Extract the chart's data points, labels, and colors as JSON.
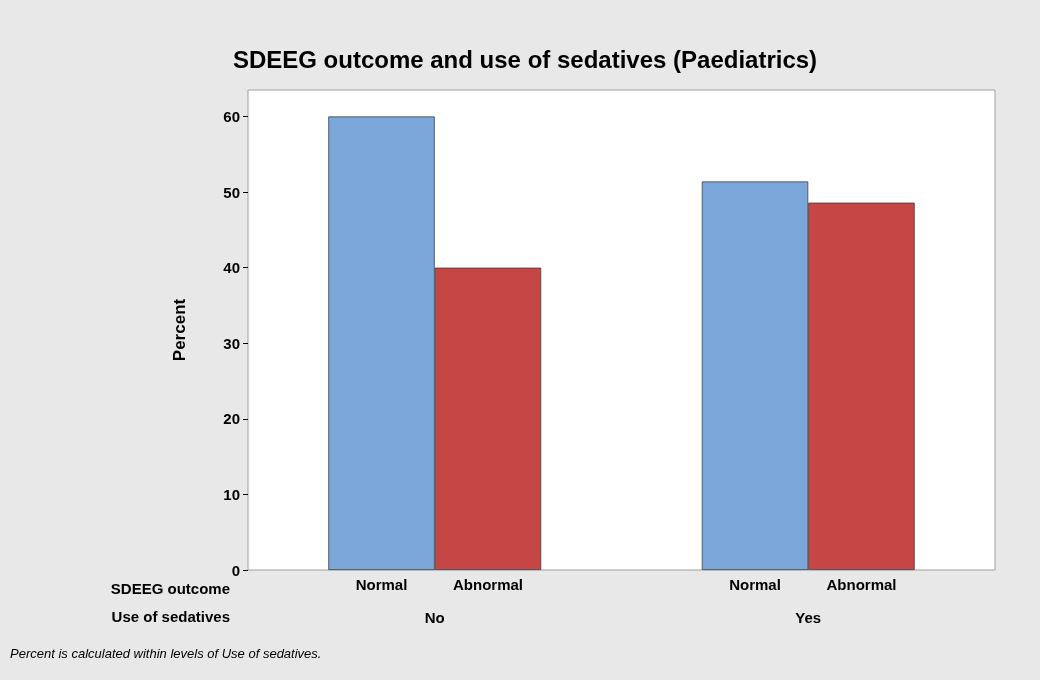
{
  "chart_data": {
    "type": "bar",
    "title": "SDEEG outcome and use of sedatives (Paediatrics)",
    "ylabel": "Percent",
    "xlabel": "Use of sedatives",
    "legend_title": "SDEEG outcome",
    "categories": [
      "No",
      "Yes"
    ],
    "series": [
      {
        "name": "Normal",
        "color": "#7ba7da",
        "values": [
          60,
          51.4
        ]
      },
      {
        "name": "Abnormal",
        "color": "#c64545",
        "values": [
          40,
          48.6
        ]
      }
    ],
    "ylim": [
      0,
      63.5
    ],
    "yticks": [
      0,
      10,
      20,
      30,
      40,
      50,
      60
    ],
    "grid": false,
    "legend": false,
    "annotations": [
      "Percent is calculated within levels of Use of sedatives."
    ]
  }
}
